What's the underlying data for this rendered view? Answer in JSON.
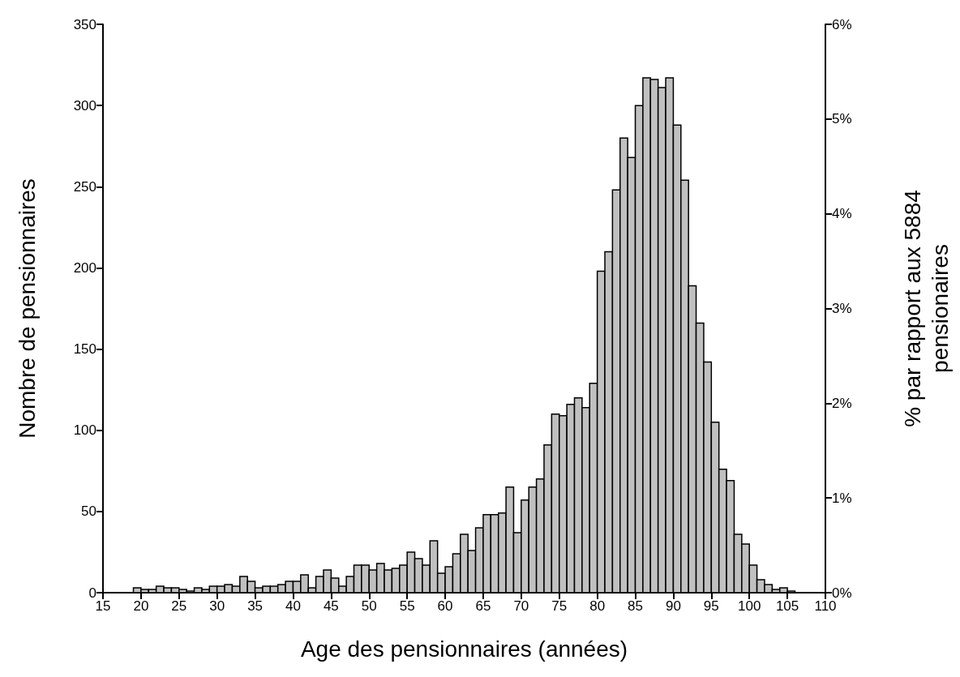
{
  "chart_data": {
    "type": "histogram",
    "xlabel": "Age des pensionnaires (années)",
    "ylabel": "Nombre de pensionnaires",
    "y2label": "% par rapport aux 5884 pensionaires",
    "bins": [
      19,
      20,
      21,
      22,
      23,
      24,
      25,
      26,
      27,
      28,
      29,
      30,
      31,
      32,
      33,
      34,
      35,
      36,
      37,
      38,
      39,
      40,
      41,
      42,
      43,
      44,
      45,
      46,
      47,
      48,
      49,
      50,
      51,
      52,
      53,
      54,
      55,
      56,
      57,
      58,
      59,
      60,
      61,
      62,
      63,
      64,
      65,
      66,
      67,
      68,
      69,
      70,
      71,
      72,
      73,
      74,
      75,
      76,
      77,
      78,
      79,
      80,
      81,
      82,
      83,
      84,
      85,
      86,
      87,
      88,
      89,
      90,
      91,
      92,
      93,
      94,
      95,
      96,
      97,
      98,
      99,
      100,
      101,
      102,
      103,
      104,
      105,
      106
    ],
    "values": [
      3,
      2,
      2,
      4,
      3,
      3,
      2,
      1,
      3,
      2,
      4,
      4,
      5,
      4,
      10,
      7,
      3,
      4,
      4,
      5,
      7,
      7,
      11,
      3,
      10,
      14,
      9,
      4,
      10,
      17,
      17,
      14,
      18,
      14,
      15,
      17,
      25,
      21,
      17,
      32,
      12,
      16,
      24,
      36,
      26,
      40,
      48,
      48,
      49,
      65,
      37,
      57,
      65,
      70,
      91,
      110,
      109,
      116,
      120,
      114,
      129,
      198,
      210,
      248,
      280,
      268,
      300,
      317,
      316,
      311,
      317,
      288,
      254,
      189,
      166,
      142,
      105,
      76,
      69,
      36,
      30,
      17,
      8,
      5,
      2,
      3,
      1
    ],
    "color": "#c0c0c0",
    "xlim": [
      15,
      110
    ],
    "xticks": [
      15,
      20,
      25,
      30,
      35,
      40,
      45,
      50,
      55,
      60,
      65,
      70,
      75,
      80,
      85,
      90,
      95,
      100,
      105,
      110
    ],
    "ylim": [
      0,
      350
    ],
    "yticks": [
      0,
      50,
      100,
      150,
      200,
      250,
      300,
      350
    ],
    "y2lim": [
      0,
      6
    ],
    "y2ticks": [
      {
        "value": 0,
        "label": "0%"
      },
      {
        "value": 1,
        "label": "1%"
      },
      {
        "value": 2,
        "label": "2%"
      },
      {
        "value": 3,
        "label": "3%"
      },
      {
        "value": 4,
        "label": "4%"
      },
      {
        "value": 5,
        "label": "5%"
      },
      {
        "value": 6,
        "label": "6%"
      }
    ],
    "grid": false
  }
}
